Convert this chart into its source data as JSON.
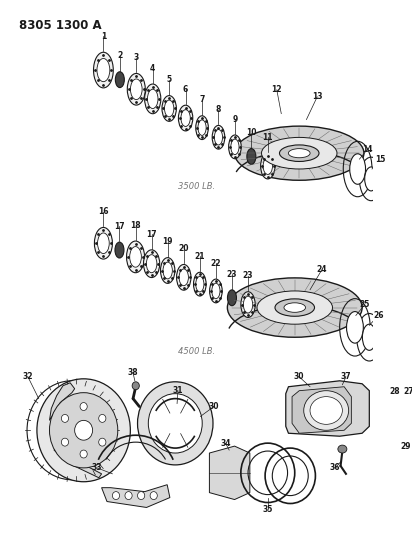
{
  "title": "8305 1300 A",
  "bg_color": "#ffffff",
  "line_color": "#1a1a1a",
  "text_color": "#1a1a1a",
  "label_3500": "3500 LB.",
  "label_4500": "4500 LB.",
  "fig_width": 4.12,
  "fig_height": 5.33,
  "dpi": 100
}
